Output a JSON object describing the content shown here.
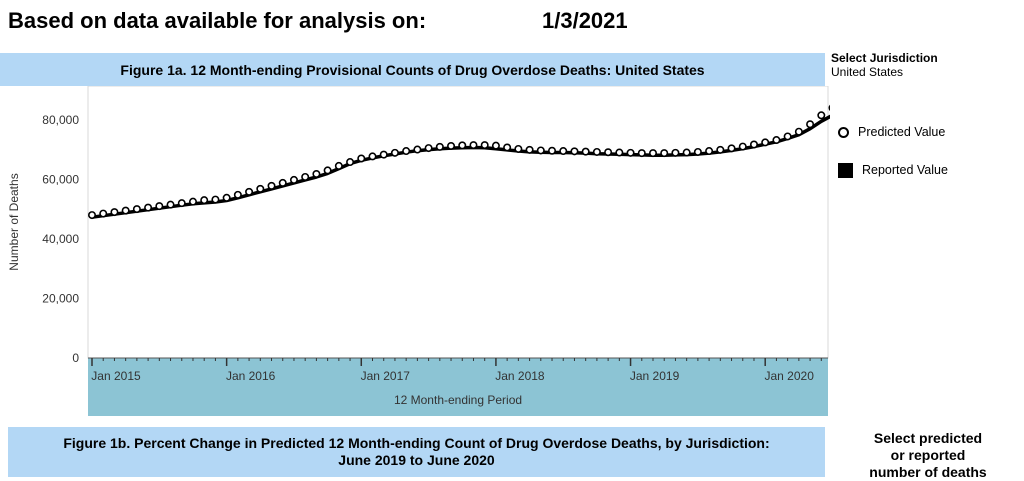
{
  "header": {
    "label": "Based on data available for analysis on:",
    "date": "1/3/2021"
  },
  "figure1a": {
    "title": "Figure 1a. 12 Month-ending Provisional Counts of Drug Overdose Deaths: United States"
  },
  "jurisdiction": {
    "title": "Select Jurisdiction",
    "value": "United States"
  },
  "legend": {
    "predicted": "Predicted Value",
    "reported": "Reported Value"
  },
  "figure1b": {
    "line1": "Figure 1b. Percent Change in Predicted 12 Month-ending Count of Drug Overdose Deaths, by Jurisdiction:",
    "line2": "June 2019 to June 2020"
  },
  "select_pred": {
    "line1": "Select predicted",
    "line2": "or reported",
    "line3": "number of deaths"
  },
  "colors": {
    "title_bar": "#b3d7f5",
    "axis_band": "#8cc4d4"
  },
  "chart_data": {
    "type": "line",
    "ylabel": "Number of Deaths",
    "xlabel": "12 Month-ending Period",
    "ylim": [
      0,
      90000
    ],
    "yticks": [
      0,
      20000,
      40000,
      60000,
      80000
    ],
    "ytick_labels": [
      "0",
      "20,000",
      "40,000",
      "60,000",
      "80,000"
    ],
    "xtick_labels": [
      "Jan 2015",
      "Jan 2016",
      "Jan 2017",
      "Jan 2018",
      "Jan 2019",
      "Jan 2020"
    ],
    "x_start": "2015-01",
    "series": [
      {
        "name": "Predicted Value",
        "marker": "circle",
        "values": [
          48000,
          48500,
          49000,
          49500,
          50000,
          50500,
          51000,
          51500,
          52000,
          52500,
          53000,
          53200,
          53800,
          54800,
          55800,
          56800,
          57800,
          58800,
          59800,
          60800,
          61800,
          63000,
          64500,
          65800,
          67000,
          67700,
          68300,
          68900,
          69500,
          70000,
          70500,
          70900,
          71200,
          71400,
          71500,
          71500,
          71300,
          70700,
          70200,
          69900,
          69700,
          69600,
          69500,
          69400,
          69300,
          69200,
          69100,
          69000,
          68900,
          68800,
          68800,
          68800,
          68900,
          69000,
          69200,
          69500,
          69900,
          70400,
          71000,
          71700,
          72400,
          73200,
          74400,
          76000,
          78500,
          81500,
          84000
        ]
      },
      {
        "name": "Reported Value",
        "values": [
          47300,
          47800,
          48300,
          48800,
          49300,
          49800,
          50300,
          50800,
          51300,
          51800,
          52100,
          52400,
          52900,
          53800,
          54800,
          55800,
          56800,
          57800,
          58800,
          59800,
          60800,
          62000,
          63600,
          65300,
          66400,
          67200,
          67900,
          68500,
          69100,
          69600,
          70000,
          70300,
          70500,
          70600,
          70700,
          70600,
          70300,
          69900,
          69500,
          69200,
          69100,
          69000,
          69000,
          68900,
          68800,
          68600,
          68500,
          68400,
          68300,
          68200,
          68100,
          68100,
          68200,
          68300,
          68500,
          68800,
          69200,
          69700,
          70300,
          71000,
          71800,
          72600,
          73700,
          75000,
          77000,
          79500,
          81500
        ]
      }
    ]
  }
}
